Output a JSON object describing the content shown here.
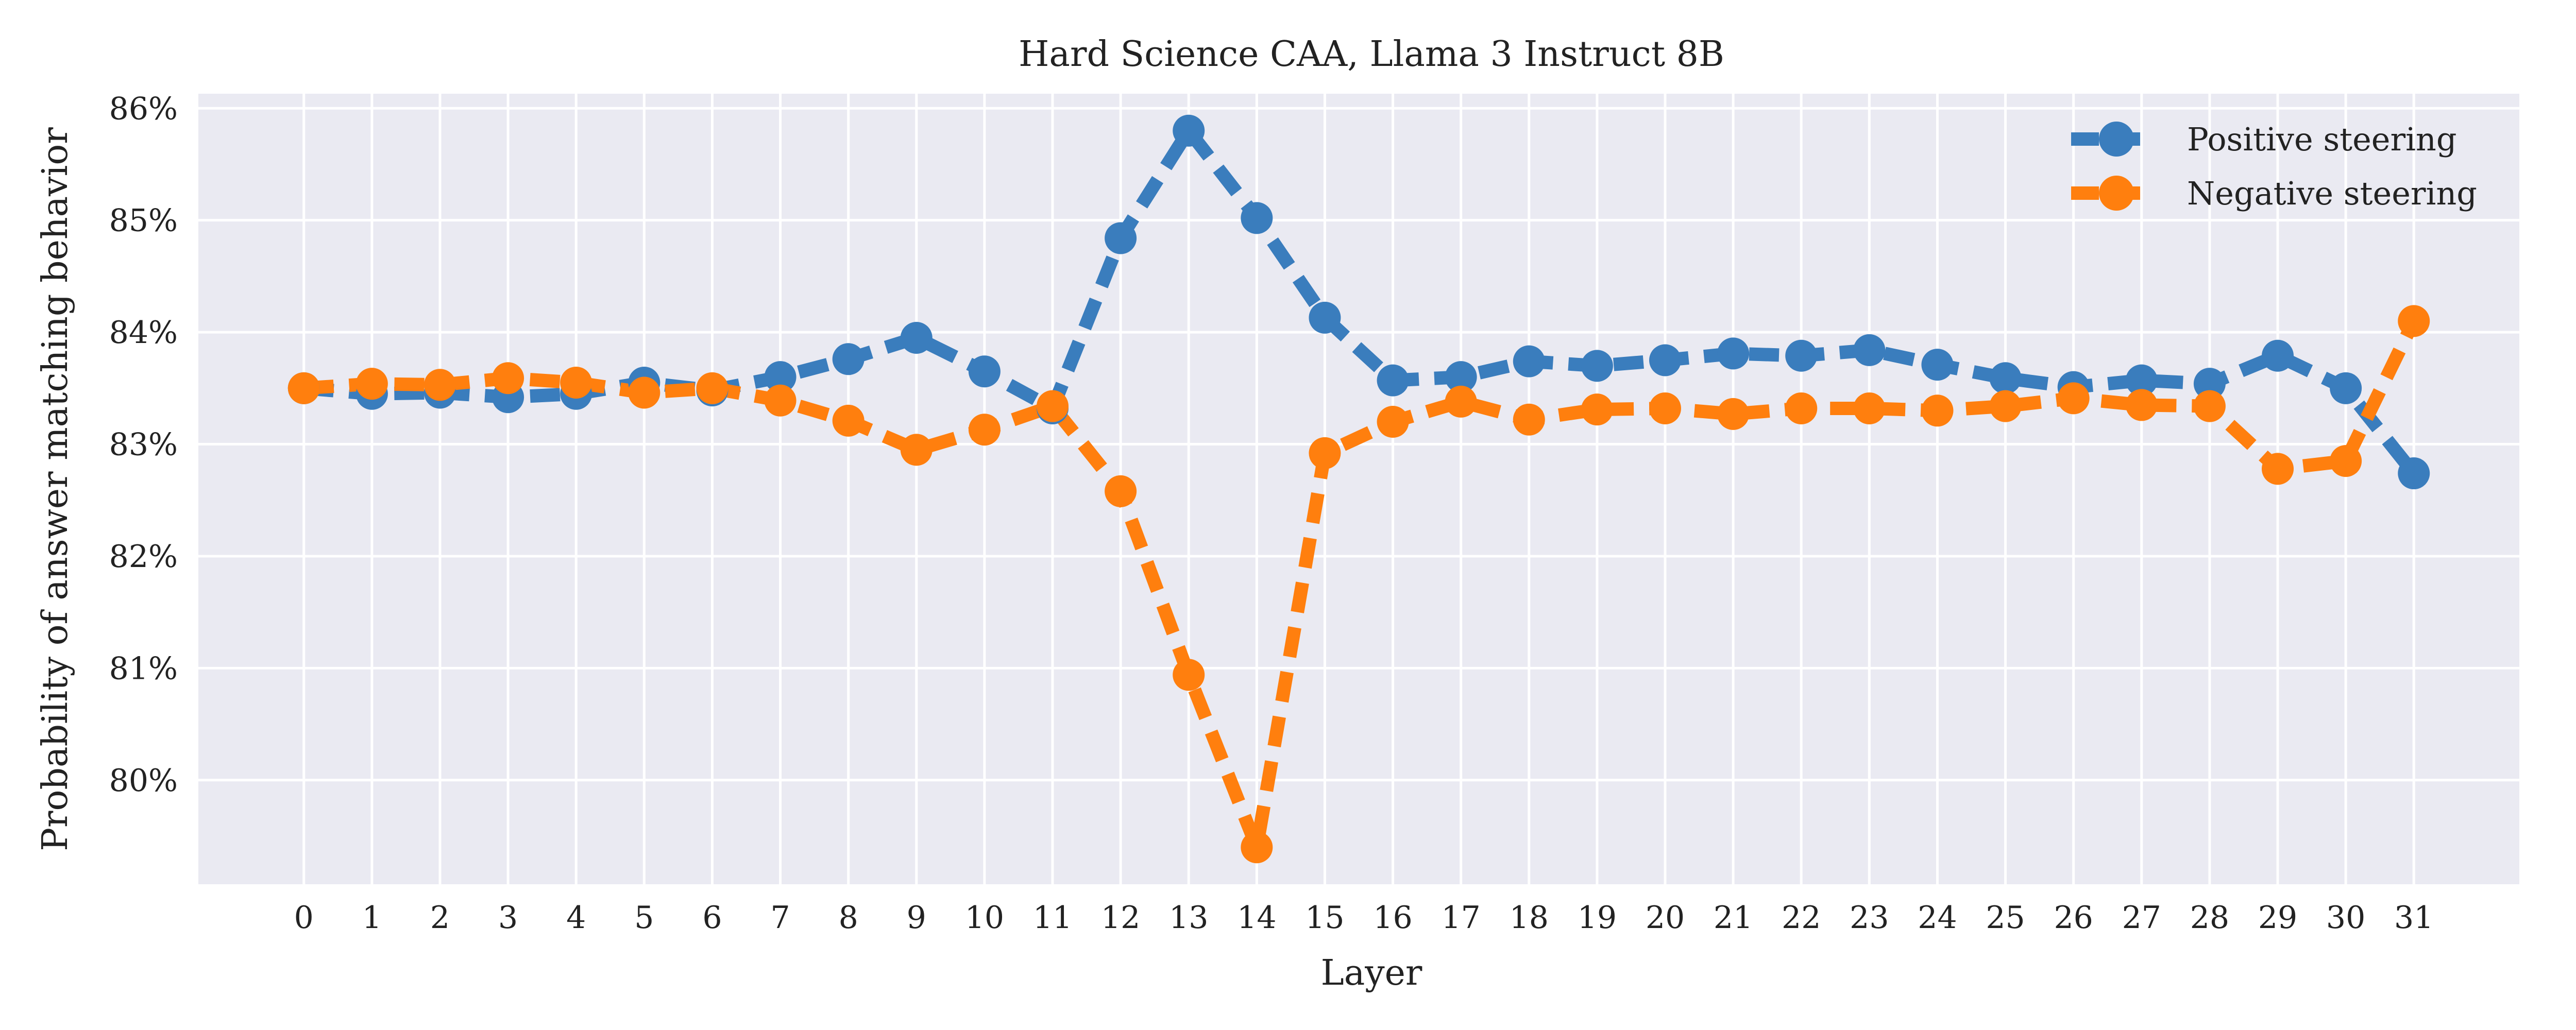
{
  "chart_data": {
    "type": "line",
    "title": "Hard Science CAA, Llama 3 Instruct 8B",
    "xlabel": "Layer",
    "ylabel": "Probability of answer matching behavior",
    "x": [
      0,
      1,
      2,
      3,
      4,
      5,
      6,
      7,
      8,
      9,
      10,
      11,
      12,
      13,
      14,
      15,
      16,
      17,
      18,
      19,
      20,
      21,
      22,
      23,
      24,
      25,
      26,
      27,
      28,
      29,
      30,
      31
    ],
    "xticks": [
      "0",
      "1",
      "2",
      "3",
      "4",
      "5",
      "6",
      "7",
      "8",
      "9",
      "10",
      "11",
      "12",
      "13",
      "14",
      "15",
      "16",
      "17",
      "18",
      "19",
      "20",
      "21",
      "22",
      "23",
      "24",
      "25",
      "26",
      "27",
      "28",
      "29",
      "30",
      "31"
    ],
    "yticks": [
      {
        "value": 80,
        "label": "80%"
      },
      {
        "value": 81,
        "label": "81%"
      },
      {
        "value": 82,
        "label": "82%"
      },
      {
        "value": 83,
        "label": "83%"
      },
      {
        "value": 84,
        "label": "84%"
      },
      {
        "value": 85,
        "label": "85%"
      },
      {
        "value": 86,
        "label": "86%"
      }
    ],
    "ylim": [
      79.07,
      86.13
    ],
    "xlim": [
      -1.55,
      32.55
    ],
    "grid": true,
    "legend_position": "top-right",
    "series": [
      {
        "name": "Positive steering",
        "color": "#3a7dbd",
        "values": [
          83.5,
          83.45,
          83.46,
          83.42,
          83.45,
          83.55,
          83.48,
          83.6,
          83.76,
          83.95,
          83.65,
          83.32,
          84.84,
          85.8,
          85.02,
          84.13,
          83.57,
          83.6,
          83.74,
          83.7,
          83.75,
          83.81,
          83.79,
          83.84,
          83.71,
          83.59,
          83.51,
          83.57,
          83.54,
          83.79,
          83.5,
          82.74
        ]
      },
      {
        "name": "Negative steering",
        "color": "#ff7f0e",
        "values": [
          83.5,
          83.54,
          83.53,
          83.59,
          83.55,
          83.46,
          83.5,
          83.39,
          83.21,
          82.95,
          83.13,
          83.34,
          82.58,
          80.94,
          79.4,
          82.92,
          83.2,
          83.38,
          83.22,
          83.31,
          83.32,
          83.27,
          83.32,
          83.32,
          83.3,
          83.34,
          83.41,
          83.35,
          83.34,
          82.78,
          82.85,
          84.1
        ]
      }
    ]
  }
}
